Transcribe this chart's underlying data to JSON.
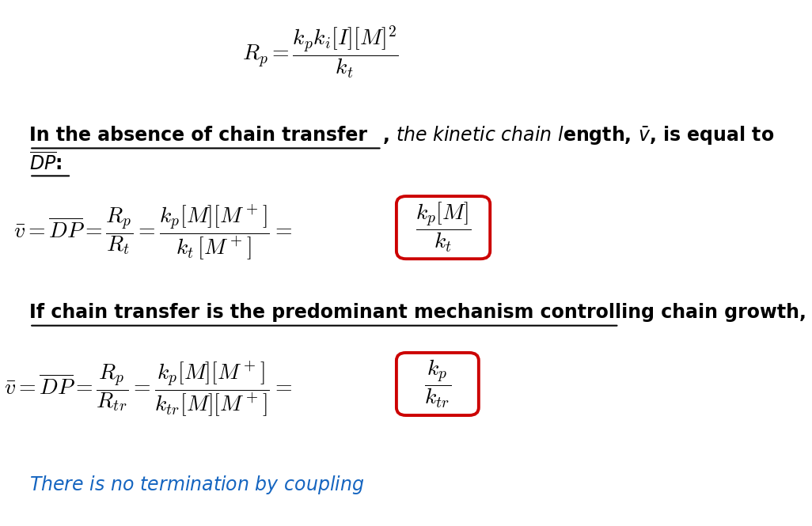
{
  "bg_color": "#ffffff",
  "eq1": "$R_p = \\dfrac{k_p k_i [I][M]^2}{k_t}$",
  "text1_line1_bold": "In the absence of chain transfer",
  "text1_line1_rest": ", $\\it{the\\ kinetic\\ chain\\ l}$ength, $\\bar{v}$, is equal to",
  "text1_line2": "$\\overline{DP}$:",
  "eq2_left": "$\\bar{v} = \\overline{DP} = \\dfrac{R_p}{R_t} = \\dfrac{k_p[M][M^+]}{k_t\\,[M^+]} =$",
  "eq2_box": "$\\dfrac{k_p[M]}{k_t}$",
  "text2": "If chain transfer is the predominant mechanism controlling chain growth,",
  "eq3_left": "$\\bar{v} = \\overline{DP} = \\dfrac{R_p}{R_{tr}} = \\dfrac{k_p[M][M^+]}{k_{tr}[M][M^+]} =$",
  "eq3_box": "$\\dfrac{k_p}{k_{tr}}$",
  "text3": "$\\it{There\\ is\\ no\\ termination\\ by\\ coupling}$",
  "text3_color": "#1565C0",
  "highlight_color": "#cc0000",
  "text_color": "#000000",
  "figsize": [
    10.26,
    6.65
  ],
  "dpi": 100
}
